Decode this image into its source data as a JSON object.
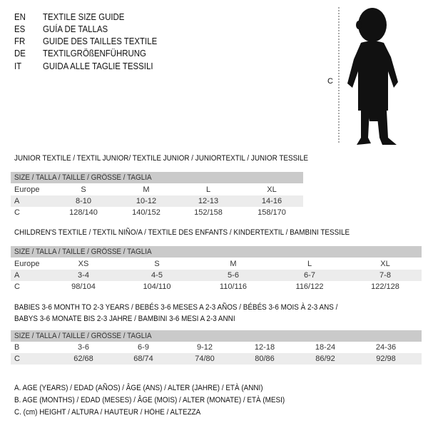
{
  "titles": [
    {
      "code": "EN",
      "text": "TEXTILE SIZE GUIDE"
    },
    {
      "code": "ES",
      "text": "GUÍA DE TALLAS"
    },
    {
      "code": "FR",
      "text": "GUIDE DES TAILLES TEXTILE"
    },
    {
      "code": "DE",
      "text": "TEXTILGRÖßENFÜHRUNG"
    },
    {
      "code": "IT",
      "text": "GUIDA ALLE TAGLIE TESSILI"
    }
  ],
  "figure": {
    "label": "C",
    "icon": "baby-silhouette"
  },
  "size_header": "SIZE / TALLA / TAILLE / GRÖSSE / TAGLIA",
  "junior": {
    "title": "JUNIOR TEXTILE / TEXTIL JUNIOR/ TEXTILE JUNIOR / JUNIORTEXTIL / JUNIOR TESSILE",
    "rows": [
      {
        "key": "Europe",
        "values": [
          "S",
          "M",
          "L",
          "XL"
        ]
      },
      {
        "key": "A",
        "values": [
          "8-10",
          "10-12",
          "12-13",
          "14-16"
        ]
      },
      {
        "key": "C",
        "values": [
          "128/140",
          "140/152",
          "152/158",
          "158/170"
        ]
      }
    ]
  },
  "children": {
    "title": "CHILDREN'S TEXTILE / TEXTIL NIÑO/A / TEXTILE DES ENFANTS / KINDERTEXTIL / BAMBINI TESSILE",
    "rows": [
      {
        "key": "Europe",
        "values": [
          "XS",
          "S",
          "M",
          "L",
          "XL"
        ]
      },
      {
        "key": "A",
        "values": [
          "3-4",
          "4-5",
          "5-6",
          "6-7",
          "7-8"
        ]
      },
      {
        "key": "C",
        "values": [
          "98/104",
          "104/110",
          "110/116",
          "116/122",
          "122/128"
        ]
      }
    ]
  },
  "babies": {
    "title_line1": "BABIES 3-6 MONTH TO 2-3 YEARS / BEBÉS 3-6 MESES A 2-3 AÑOS / BÉBÉS 3-6 MOIS À 2-3 ANS /",
    "title_line2": "BABYS 3-6 MONATE BIS 2-3 JAHRE / BAMBINI 3-6 MESI A 2-3 ANNI",
    "rows": [
      {
        "key": "B",
        "values": [
          "3-6",
          "6-9",
          "9-12",
          "12-18",
          "18-24",
          "24-36"
        ]
      },
      {
        "key": "C",
        "values": [
          "62/68",
          "68/74",
          "74/80",
          "80/86",
          "86/92",
          "92/98"
        ]
      }
    ]
  },
  "legend": [
    "A. AGE (YEARS) / EDAD (AÑOS) / ÂGE (ANS) / ALTER (JAHRE) / ETÀ (ANNI)",
    "B. AGE (MONTHS) / EDAD (MESES) / ÂGE (MOIS) / ALTER (MONATE) / ETÀ (MESI)",
    "C. (cm) HEIGHT / ALTURA / HAUTEUR / HÖHE / ALTEZZA"
  ]
}
